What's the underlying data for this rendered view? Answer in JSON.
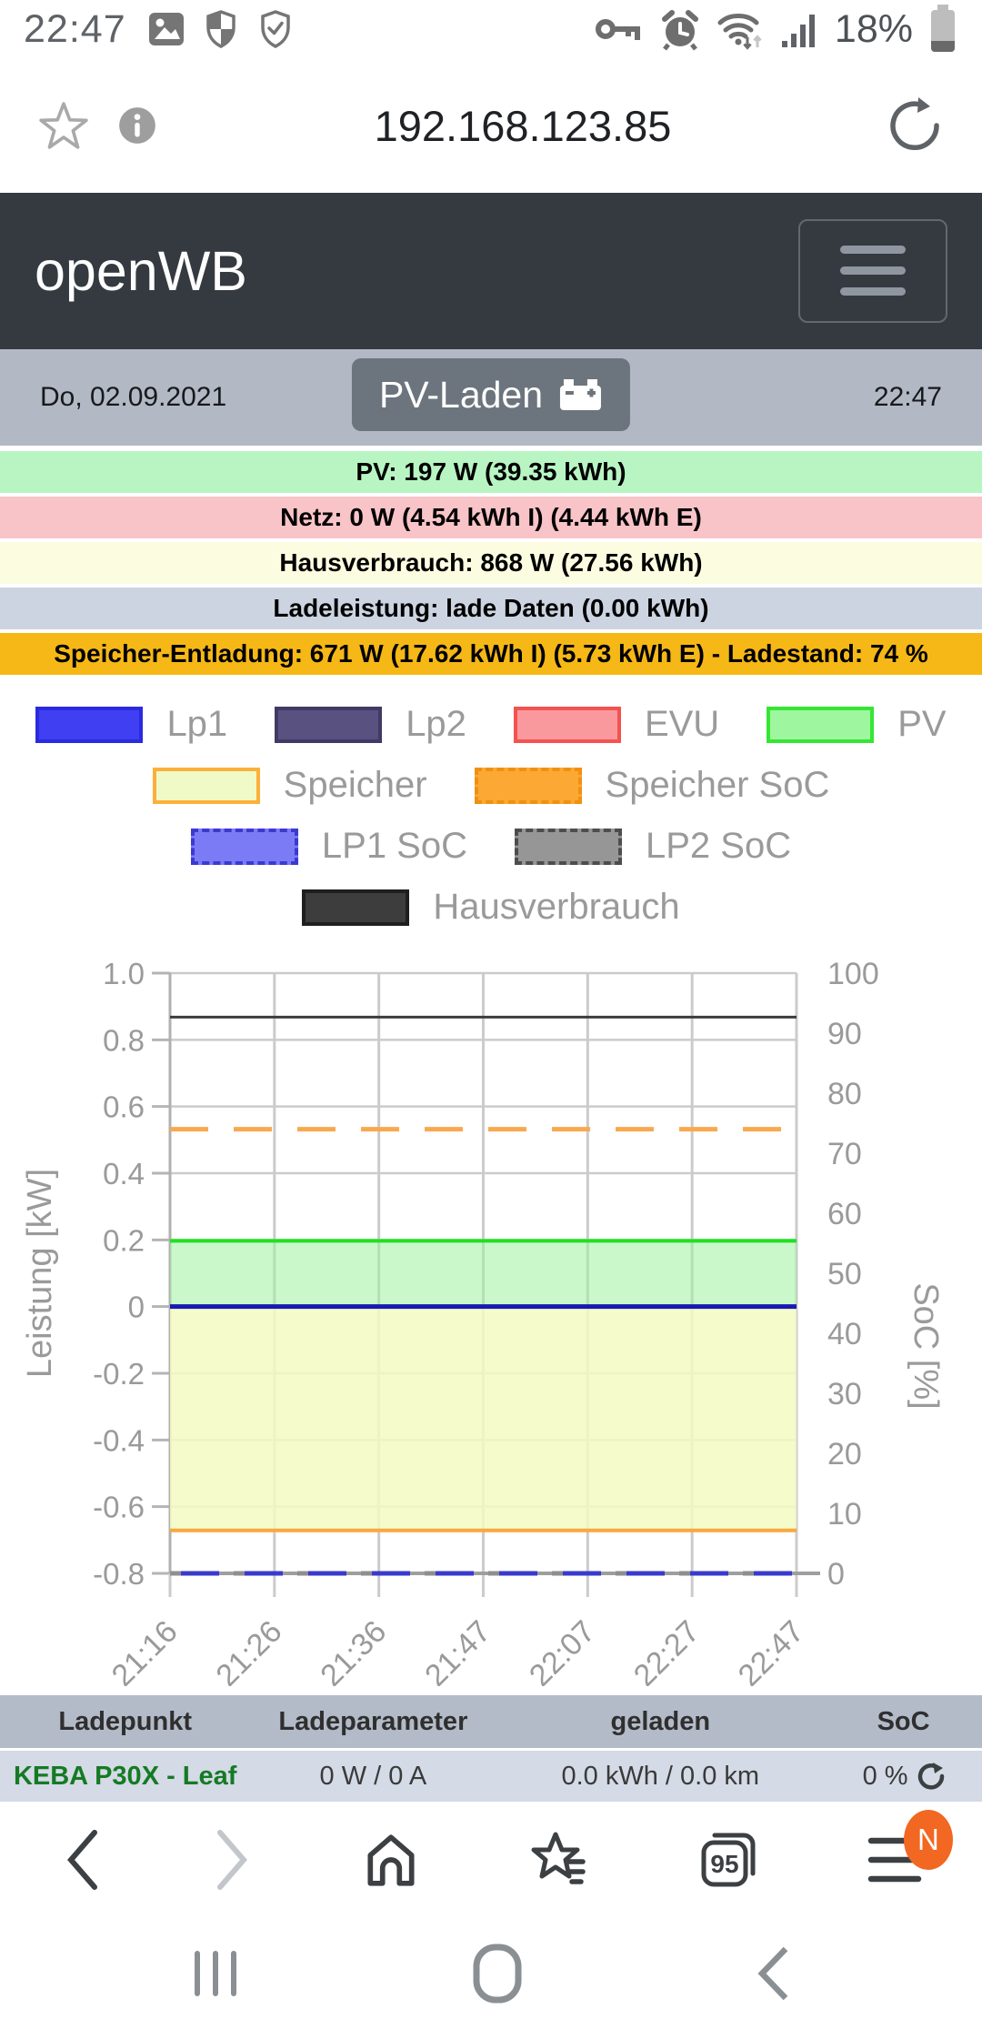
{
  "status_bar": {
    "time": "22:47",
    "battery_percent": "18%",
    "icons_left": [
      "image-icon",
      "shield-half-icon",
      "shield-check-icon"
    ],
    "icons_right": [
      "key-icon",
      "alarm-icon",
      "wifi-updown-icon",
      "signal-bars-icon",
      "battery-icon"
    ]
  },
  "address_bar": {
    "url": "192.168.123.85",
    "icons": [
      "star-icon",
      "info-icon",
      "refresh-icon"
    ]
  },
  "app_header": {
    "title": "openWB",
    "menu_icon": "hamburger-icon"
  },
  "info_bar": {
    "date": "Do, 02.09.2021",
    "mode_button_label": "PV-Laden",
    "mode_button_icon": "battery-icon",
    "time": "22:47"
  },
  "status_rows": [
    {
      "key": "pv",
      "text": "PV: 197 W (39.35 kWh)",
      "bg": "#b8f5c3"
    },
    {
      "key": "netz",
      "text": "Netz: 0 W (4.54 kWh I) (4.44 kWh E)",
      "bg": "#f9c4c8"
    },
    {
      "key": "hausverbrauch",
      "text": "Hausverbrauch: 868 W (27.56 kWh)",
      "bg": "#fcfce1"
    },
    {
      "key": "ladeleistung",
      "text": "Ladeleistung: lade Daten (0.00 kWh)",
      "bg": "#cdd4e1"
    },
    {
      "key": "speicher",
      "text": "Speicher-Entladung: 671 W (17.62 kWh I) (5.73 kWh E) - Ladestand: 74 %",
      "bg": "#f5b816"
    }
  ],
  "chart_data": {
    "type": "line",
    "ylabel_left": "Leistung [kW]",
    "ylabel_right": "SoC [%]",
    "x_ticks": [
      "21:16",
      "21:26",
      "21:36",
      "21:47",
      "22:07",
      "22:27",
      "22:47"
    ],
    "ylim_left": [
      -0.8,
      1.0
    ],
    "y_ticks_left": [
      1.0,
      0.8,
      0.6,
      0.4,
      0.2,
      0,
      -0.2,
      -0.4,
      -0.6,
      -0.8
    ],
    "ylim_right": [
      0,
      100
    ],
    "y_ticks_right": [
      100,
      90,
      80,
      70,
      60,
      50,
      40,
      30,
      20,
      10,
      0
    ],
    "grid": true,
    "series": [
      {
        "name": "PV",
        "axis": "left",
        "type": "area",
        "value": 0.197,
        "base": 0,
        "fill": "rgba(160,242,160,0.55)",
        "line_color": "#21e021",
        "line_width": 4
      },
      {
        "name": "Speicher",
        "axis": "left",
        "type": "area",
        "value": -0.671,
        "base": 0,
        "fill": "rgba(243,250,194,0.85)",
        "line_color": "#f8a93c",
        "line_width": 4
      },
      {
        "name": "Hausverbrauch",
        "axis": "left",
        "type": "line",
        "value": 0.868,
        "color": "#3c3c3c",
        "width": 3
      },
      {
        "name": "Speicher SoC",
        "axis": "right",
        "type": "dashed",
        "value": 74,
        "color": "#f8a94f",
        "width": 5
      },
      {
        "name": "Lp1",
        "axis": "left",
        "type": "line",
        "value": 0,
        "color": "#1818b2",
        "width": 5
      },
      {
        "name": "LP2 SoC",
        "axis": "right",
        "type": "dashed",
        "value": 0,
        "color": "#8f8f8f",
        "width": 5
      },
      {
        "name": "LP1 SoC",
        "axis": "right",
        "type": "dashed",
        "value": 0,
        "color": "#3a3ace",
        "width": 5
      }
    ],
    "legend_rows": [
      [
        {
          "label": "Lp1",
          "fill": "#4040f2",
          "border": "#2a2ae0",
          "dash": false
        },
        {
          "label": "Lp2",
          "fill": "#595180",
          "border": "#403a66",
          "dash": false
        },
        {
          "label": "EVU",
          "fill": "#f9999d",
          "border": "#f4524e",
          "dash": false
        },
        {
          "label": "PV",
          "fill": "#9ef79e",
          "border": "#35e635",
          "dash": false
        }
      ],
      [
        {
          "label": "Speicher",
          "fill": "#f0fac6",
          "border": "#fbb03b",
          "dash": false
        },
        {
          "label": "Speicher SoC",
          "fill": "#fba834",
          "border": "#f09011",
          "dash": true
        }
      ],
      [
        {
          "label": "LP1 SoC",
          "fill": "#7b7bf5",
          "border": "#3a3ad2",
          "dash": true
        },
        {
          "label": "LP2 SoC",
          "fill": "#969696",
          "border": "#4d4d4d",
          "dash": true
        }
      ],
      [
        {
          "label": "Hausverbrauch",
          "fill": "#3d3d3d",
          "border": "#1f1f1f",
          "dash": false
        }
      ]
    ]
  },
  "table": {
    "headers": [
      "Ladepunkt",
      "Ladeparameter",
      "geladen",
      "SoC"
    ],
    "rows": [
      {
        "cells": [
          "KEBA P30X - Leaf",
          "0 W / 0 A",
          "0.0 kWh / 0.0 km",
          "0 %"
        ],
        "has_refresh": true
      }
    ]
  },
  "browser_nav": {
    "tabs_count": "95",
    "notification_badge": "N",
    "icons": [
      "back-chevron-icon",
      "forward-chevron-icon",
      "home-icon",
      "bookmarks-star-icon",
      "tabs-icon",
      "menu-icon"
    ]
  },
  "android_nav": {
    "icons": [
      "recents-icon",
      "home-squircle-icon",
      "back-icon"
    ]
  },
  "colors": {
    "header_bg": "#343a40",
    "info_bar_bg": "#b2b8c4",
    "mode_button_bg": "#6c757d",
    "table_header_bg": "#b4bbc8",
    "table_row_bg": "#d4dae6",
    "keba_green": "#157a24",
    "badge_orange": "#f26722"
  }
}
